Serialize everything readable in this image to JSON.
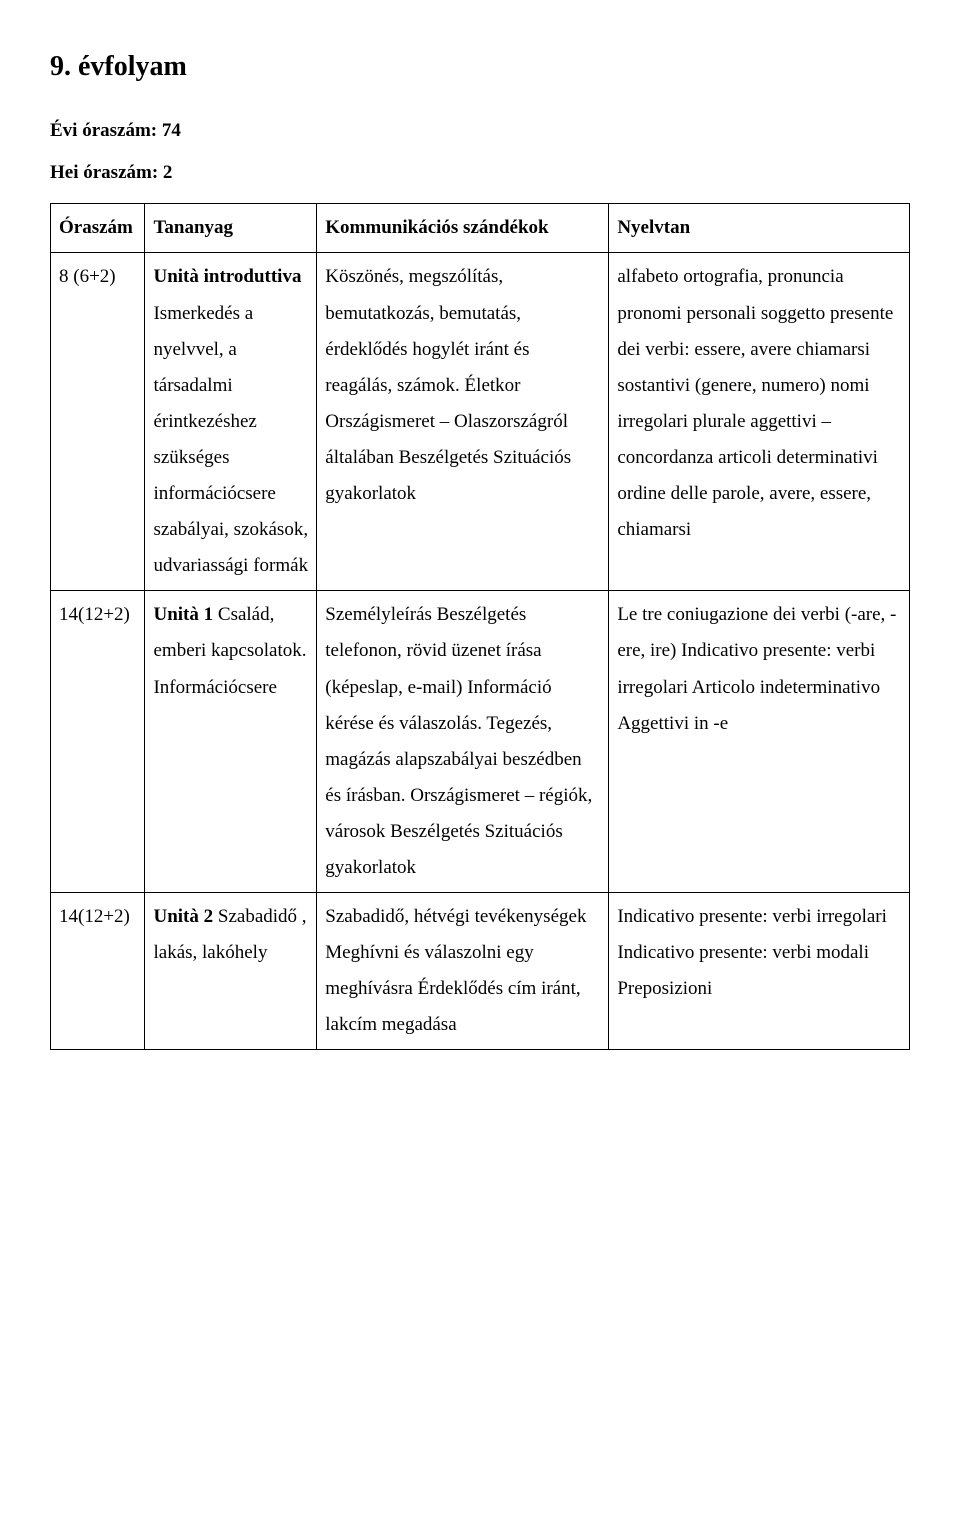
{
  "title": "9. évfolyam",
  "sub1": "Évi óraszám: 74",
  "sub2": "Hei óraszám: 2",
  "headers": {
    "oraszam": "Óraszám",
    "tananyag": "Tananyag",
    "komm": "Kommunikációs szándékok",
    "nyelvtan": "Nyelvtan"
  },
  "rows": [
    {
      "oraszam": "8 (6+2)",
      "tananyag_bold": "Unità introduttiva",
      "tananyag_rest": "Ismerkedés a nyelvvel, a társadalmi érintkezéshez szükséges információcsere szabályai, szokások, udvariassági formák",
      "komm": "Köszönés, megszólítás, bemutatkozás, bemutatás, érdeklődés hogylét iránt és reagálás, számok. Életkor Országismeret – Olaszországról általában Beszélgetés Szituációs gyakorlatok",
      "nyelvtan": "alfabeto ortografia, pronuncia pronomi personali soggetto presente dei verbi: essere, avere chiamarsi sostantivi (genere, numero) nomi irregolari plurale aggettivi – concordanza articoli determinativi ordine delle parole, avere, essere, chiamarsi"
    },
    {
      "oraszam": "14(12+2)",
      "tananyag_bold": "Unità 1",
      "tananyag_rest": "Család, emberi kapcsolatok. Információcsere",
      "komm": "Személyleírás Beszélgetés telefonon, rövid üzenet írása (képeslap, e-mail) Információ kérése és válaszolás. Tegezés, magázás alapszabályai beszédben és írásban. Országismeret – régiók, városok Beszélgetés Szituációs gyakorlatok",
      "nyelvtan": "Le tre coniugazione dei verbi (-are, -ere, ire) Indicativo presente: verbi irregolari Articolo indeterminativo Aggettivi in -e"
    },
    {
      "oraszam": "14(12+2)",
      "tananyag_bold": "Unità 2",
      "tananyag_rest": "Szabadidő , lakás, lakóhely",
      "komm": "Szabadidő, hétvégi tevékenységek Meghívni és válaszolni egy meghívásra Érdeklődés cím iránt, lakcím megadása",
      "nyelvtan": "Indicativo presente: verbi irregolari Indicativo presente: verbi modali Preposizioni"
    }
  ]
}
